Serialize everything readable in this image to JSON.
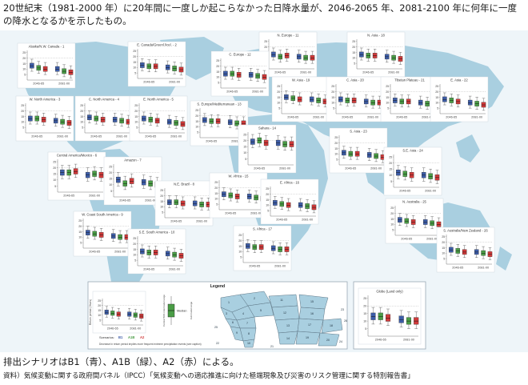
{
  "title": "20世紀末（1981-2000 年）に20年間に一度しか起こらなかった日降水量が、2046-2065 年、2081-2100 年に何年に一度の降水となるかを示したもの。",
  "caption": "排出シナリオはB1（青）、A1B（緑）、A2（赤）による。",
  "source": "資料）気候変動に関する政府間パネル（IPCC）「気候変動への適応推進に向けた極端現象及び災害のリスク管理に関する特別報告書」",
  "colors": {
    "b1": "#3d5da8",
    "a1b": "#4a9d46",
    "a2": "#cf3a3a",
    "map": "#a9cfe0",
    "panel_bg": "#ffffff",
    "frame": "#9aa8b4"
  },
  "chart_data": {
    "type": "boxplot",
    "scenarios": [
      "B1",
      "A1B",
      "A2"
    ],
    "periods": [
      "2046-65",
      "2081-00"
    ],
    "y_ticks": [
      5,
      10,
      15,
      20,
      25
    ],
    "legend": {
      "title": "Legend",
      "ylabel": "Return period (Years)",
      "scenarios_label": "Scenarios:",
      "median_label": "Median",
      "central_label": "Central 50% intermodel range",
      "full_label": "Full model range",
      "footnote": "Decrease in return period implies more frequent extreme precipitation events (see caption)",
      "map_numbers": [
        "1",
        "2",
        "3",
        "4",
        "5",
        "6",
        "7",
        "8",
        "9",
        "10",
        "11",
        "12",
        "13",
        "14",
        "15",
        "16",
        "17",
        "18",
        "19",
        "20",
        "21",
        "22",
        "23",
        "24",
        "25",
        "26"
      ]
    },
    "regions": [
      {
        "name": "Alaska/N.W. Canada - 1",
        "medians": [
          13,
          11,
          10,
          10,
          8,
          7
        ]
      },
      {
        "name": "E. Canada/Greenl./Icel. - 2",
        "medians": [
          12,
          11,
          11,
          10,
          9,
          8
        ]
      },
      {
        "name": "W. North America - 3",
        "medians": [
          13,
          13,
          12,
          11,
          10,
          9
        ]
      },
      {
        "name": "C. North America - 4",
        "medians": [
          14,
          13,
          12,
          12,
          11,
          10
        ]
      },
      {
        "name": "E. North America - 5",
        "medians": [
          13,
          12,
          11,
          10,
          9,
          8
        ]
      },
      {
        "name": "Central America/Mexico - 6",
        "medians": [
          16,
          16,
          17,
          14,
          15,
          14
        ]
      },
      {
        "name": "Amazon - 7",
        "medians": [
          14,
          11,
          13,
          12,
          11,
          10
        ]
      },
      {
        "name": "N.E. Brazil - 8",
        "medians": [
          14,
          14,
          13,
          13,
          12,
          12
        ]
      },
      {
        "name": "W. Coast South America - 9",
        "medians": [
          14,
          13,
          12,
          11,
          10,
          10
        ]
      },
      {
        "name": "S.E. South America - 10",
        "medians": [
          13,
          12,
          12,
          11,
          10,
          9
        ]
      },
      {
        "name": "N. Europe - 11",
        "medians": [
          13,
          11,
          12,
          11,
          10,
          10
        ]
      },
      {
        "name": "C. Europe - 12",
        "medians": [
          13,
          13,
          12,
          12,
          11,
          10
        ]
      },
      {
        "name": "S. Europe/Mediterranean - 13",
        "medians": [
          16,
          15,
          15,
          14,
          13,
          13
        ]
      },
      {
        "name": "Sahara - 14",
        "medians": [
          19,
          20,
          18,
          18,
          17,
          17
        ]
      },
      {
        "name": "W. Africa - 15",
        "medians": [
          14,
          13,
          12,
          12,
          11,
          10
        ]
      },
      {
        "name": "E. Africa - 16",
        "medians": [
          12,
          11,
          10,
          10,
          9,
          8
        ]
      },
      {
        "name": "S. Africa - 17",
        "medians": [
          15,
          14,
          14,
          13,
          12,
          12
        ]
      },
      {
        "name": "N. Asia - 18",
        "medians": [
          13,
          12,
          12,
          11,
          10,
          9
        ]
      },
      {
        "name": "W. Asia - 19",
        "medians": [
          15,
          14,
          13,
          13,
          12,
          11
        ]
      },
      {
        "name": "C. Asia - 20",
        "medians": [
          13,
          12,
          12,
          11,
          10,
          10
        ]
      },
      {
        "name": "Tibetan Plateau - 21",
        "medians": [
          12,
          11,
          11,
          10,
          9,
          8
        ]
      },
      {
        "name": "E. Asia - 22",
        "medians": [
          13,
          12,
          11,
          10,
          9,
          8
        ]
      },
      {
        "name": "S. Asia - 23",
        "medians": [
          11,
          10,
          10,
          9,
          8,
          7
        ]
      },
      {
        "name": "S.E. Asia - 24",
        "medians": [
          12,
          11,
          10,
          10,
          9,
          8
        ]
      },
      {
        "name": "N. Australia - 25",
        "medians": [
          14,
          13,
          12,
          12,
          11,
          10
        ]
      },
      {
        "name": "S. Australia/New Zealand - 26",
        "medians": [
          13,
          12,
          11,
          11,
          10,
          9
        ]
      },
      {
        "name": "Globe (Land only)",
        "medians": [
          13,
          13,
          12,
          11,
          10,
          10
        ]
      }
    ]
  }
}
